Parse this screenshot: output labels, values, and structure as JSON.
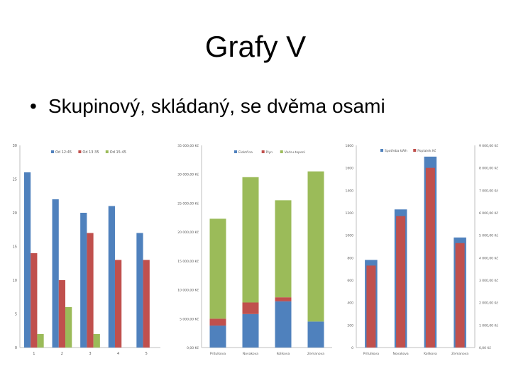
{
  "slide": {
    "title": "Grafy V",
    "bullet": "Skupinový, skládaný, se dvěma osami"
  },
  "chart_data": [
    {
      "type": "bar",
      "subtype": "clustered",
      "categories": [
        "1",
        "2",
        "3",
        "4",
        "5"
      ],
      "series": [
        {
          "name": "Od 12:45",
          "values": [
            26,
            22,
            20,
            21,
            17
          ],
          "color": "#4F81BD"
        },
        {
          "name": "Od 13:35",
          "values": [
            14,
            10,
            17,
            13,
            13
          ],
          "color": "#C0504D"
        },
        {
          "name": "Od 15:45",
          "values": [
            2,
            6,
            2,
            0,
            0
          ],
          "color": "#9BBB59"
        }
      ],
      "ylim": [
        0,
        30
      ],
      "yticks": [
        "0",
        "5",
        "10",
        "15",
        "20",
        "25",
        "30"
      ],
      "grid": false,
      "legend": "top"
    },
    {
      "type": "bar",
      "subtype": "stacked",
      "categories": [
        "Pritulkova",
        "Novakova",
        "Kolikova",
        "Zemanova"
      ],
      "series": [
        {
          "name": "Elektřina",
          "values": [
            3800,
            5800,
            8000,
            4500
          ],
          "color": "#4F81BD"
        },
        {
          "name": "Plyn",
          "values": [
            1200,
            2000,
            700,
            0
          ],
          "color": "#C0504D"
        },
        {
          "name": "Voda+topení",
          "values": [
            17300,
            21700,
            16800,
            26000
          ],
          "color": "#9BBB59"
        }
      ],
      "ylim": [
        0,
        35000
      ],
      "yticks": [
        "0,00 Kč",
        "5 000,00 Kč",
        "10 000,00 Kč",
        "15 000,00 Kč",
        "20 000,00 Kč",
        "25 000,00 Kč",
        "30 000,00 Kč",
        "35 000,00 Kč"
      ],
      "grid": false,
      "legend": "top"
    },
    {
      "type": "bar",
      "subtype": "dual-axis",
      "categories": [
        "Pritulkova",
        "Novakova",
        "Kolikova",
        "Zemanova"
      ],
      "series": [
        {
          "name": "Spotřeba kWh",
          "axis": "left",
          "values": [
            780,
            1230,
            1700,
            980
          ],
          "color": "#4F81BD"
        },
        {
          "name": "Poplatek Kč",
          "axis": "right",
          "values": [
            3650,
            5850,
            8000,
            4650
          ],
          "color": "#C0504D"
        }
      ],
      "ylim": [
        0,
        1800
      ],
      "yticks": [
        "0",
        "200",
        "400",
        "600",
        "800",
        "1000",
        "1200",
        "1400",
        "1600",
        "1800"
      ],
      "y2lim": [
        0,
        9000
      ],
      "y2ticks": [
        "0,00 Kč",
        "1 000,00 Kč",
        "2 000,00 Kč",
        "3 000,00 Kč",
        "4 000,00 Kč",
        "5 000,00 Kč",
        "6 000,00 Kč",
        "7 000,00 Kč",
        "8 000,00 Kč",
        "9 000,00 Kč"
      ],
      "grid": false,
      "legend": "top"
    }
  ]
}
